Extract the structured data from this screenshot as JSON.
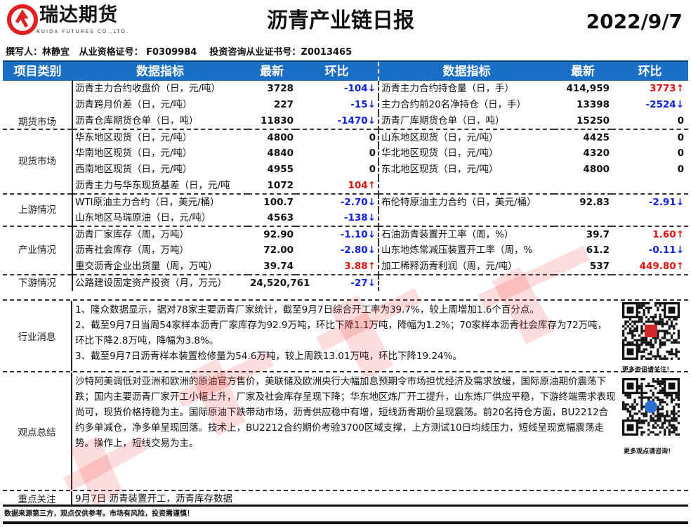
{
  "header": {
    "brand": "瑞达期货",
    "brand_en": "RUIDA FUTURES CO.,LTD.",
    "title": "沥青产业链日报",
    "date": "2022/9/7",
    "brand_color": "#e02020"
  },
  "author_line": "撰写人：林静宜   从业资格证号： F0309984    投资咨询从业证书号：Z0013465",
  "table_header": [
    "项目类别",
    "数据指标",
    "最新",
    "环比",
    "数据指标",
    "最新",
    "环比"
  ],
  "groups": [
    {
      "category": "期货市场",
      "rows": [
        {
          "l": {
            "name": "沥青主力合约收盘价（日，元/吨）",
            "latest": "3728",
            "change": "-104",
            "dir": "down"
          },
          "r": {
            "name": "沥青主力合约持仓量（日，手）",
            "latest": "414,959",
            "change": "3773",
            "dir": "up"
          }
        },
        {
          "l": {
            "name": "沥青跨月价差（日，元/吨）",
            "latest": "227",
            "change": "-15",
            "dir": "down"
          },
          "r": {
            "name": "主力合约前20名净持仓（日，手）",
            "latest": "13398",
            "change": "-2524",
            "dir": "down"
          }
        },
        {
          "l": {
            "name": "沥青仓库期货仓单（日，吨）",
            "latest": "11830",
            "change": "-1470",
            "dir": "down"
          },
          "r": {
            "name": "沥青厂库期货仓单（日，吨）",
            "latest": "15250",
            "change": "0",
            "dir": "zero"
          }
        }
      ]
    },
    {
      "category": "现货市场",
      "rows": [
        {
          "l": {
            "name": "华东地区现货（日，元/吨）",
            "latest": "4800",
            "change": "0",
            "dir": "zero"
          },
          "r": {
            "name": "山东地区现货（日，元/吨）",
            "latest": "4425",
            "change": "0",
            "dir": "zero"
          }
        },
        {
          "l": {
            "name": "华南地区现货（日，元/吨）",
            "latest": "4840",
            "change": "0",
            "dir": "zero"
          },
          "r": {
            "name": "华北地区现货（日，元/吨）",
            "latest": "4320",
            "change": "0",
            "dir": "zero"
          }
        },
        {
          "l": {
            "name": "西南地区现货（日，元/吨）",
            "latest": "4955",
            "change": "0",
            "dir": "zero"
          },
          "r": {
            "name": "东北地区现货（日，元/吨）",
            "latest": "4800",
            "change": "0",
            "dir": "zero"
          }
        },
        {
          "l": {
            "name": "沥青主力与华东现货基差（日，元/吨",
            "latest": "1072",
            "change": "104",
            "dir": "up"
          },
          "r": null
        }
      ]
    },
    {
      "category": "上游情况",
      "rows": [
        {
          "l": {
            "name": "WTI原油主力合约（日，美元/桶）",
            "latest": "100.7",
            "change": "-2.70",
            "dir": "down"
          },
          "r": {
            "name": "布伦特原油主力合约（日，美元/桶）",
            "latest": "92.83",
            "change": "-2.91",
            "dir": "down"
          }
        },
        {
          "l": {
            "name": "山东地区马瑞原油（日，元/吨）",
            "latest": "4563",
            "change": "-138",
            "dir": "down"
          },
          "r": null
        }
      ]
    },
    {
      "category": "产业情况",
      "rows": [
        {
          "l": {
            "name": "沥青厂家库存（周，万吨）",
            "latest": "92.90",
            "change": "-1.10",
            "dir": "down"
          },
          "r": {
            "name": "石油沥青装置开工率（周，%）",
            "latest": "39.7",
            "change": "1.60",
            "dir": "up"
          }
        },
        {
          "l": {
            "name": "沥青社会库存（周，万吨）",
            "latest": "72.00",
            "change": "-2.80",
            "dir": "down"
          },
          "r": {
            "name": "山东地炼常减压装置开工率（周，%",
            "latest": "61.2",
            "change": "-0.11",
            "dir": "down"
          }
        },
        {
          "l": {
            "name": "重交沥青企业出货量（周，万吨）",
            "latest": "39.74",
            "change": "3.88",
            "dir": "up"
          },
          "r": {
            "name": "加工稀释沥青利润（周，元/吨）",
            "latest": "537",
            "change": "449.80",
            "dir": "up"
          }
        }
      ]
    },
    {
      "category": "下游情况",
      "rows": [
        {
          "l": {
            "name": "公路建设固定资产投资（月，万元）",
            "latest": "24,520,761",
            "change": "-27",
            "dir": "down"
          },
          "r": null
        }
      ]
    }
  ],
  "news": {
    "label": "行业消息",
    "lines": [
      "1、隆众数据显示，据对78家主要沥青厂家统计，截至9月7日综合开工率为39.7%，较上周增加1.6个百分点。",
      "2、截至9月7日当周54家样本沥青厂家库存为92.9万吨，环比下降1.1万吨，降幅为1.2%；70家样本沥青社会库存为72万吨，环比下降2.8万吨，降幅为3.8%。",
      "3、截至9月7日沥青样本装置检修量为54.6万吨，较上周跌13.01万吨，环比下降19.24%。"
    ]
  },
  "view": {
    "label": "观点总结",
    "text": "沙特阿美调低对亚洲和欧洲的原油官方售价，美联储及欧洲央行大幅加息预期令市场担忧经济及需求放缓，国际原油期价震荡下跌；国内主要沥青厂家开工小幅上升，厂家及社会库存呈现下降；华东地区炼厂开工提升，山东炼厂供应平稳，下游终端需求表现尚可，现货价格持稳为主。国际原油下跌带动市场，沥青供应稳中有增，短线沥青期价呈现震荡。前20名持仓方面，BU2212合约多单减仓，净多单呈现回落。技术上，BU2212合约期价考验3700区域支撑，上方测试10日均线压力，短线呈现宽幅震荡走势。操作上，短线交易为主。"
  },
  "focus": {
    "label": "重点关注",
    "text": "9月7日 沥青装置开工，沥青库存数据"
  },
  "qr": {
    "caption1": "更多资讯请关注！",
    "caption2": "更多观点请咨询！"
  },
  "footer": "数据来源第三方，观点仅供参考。市场有风险，投资需谨慎！",
  "watermark": "瑞达研究",
  "colors": {
    "header_bg": "#1a6fc4",
    "up": "#e01010",
    "down": "#1020e0"
  }
}
